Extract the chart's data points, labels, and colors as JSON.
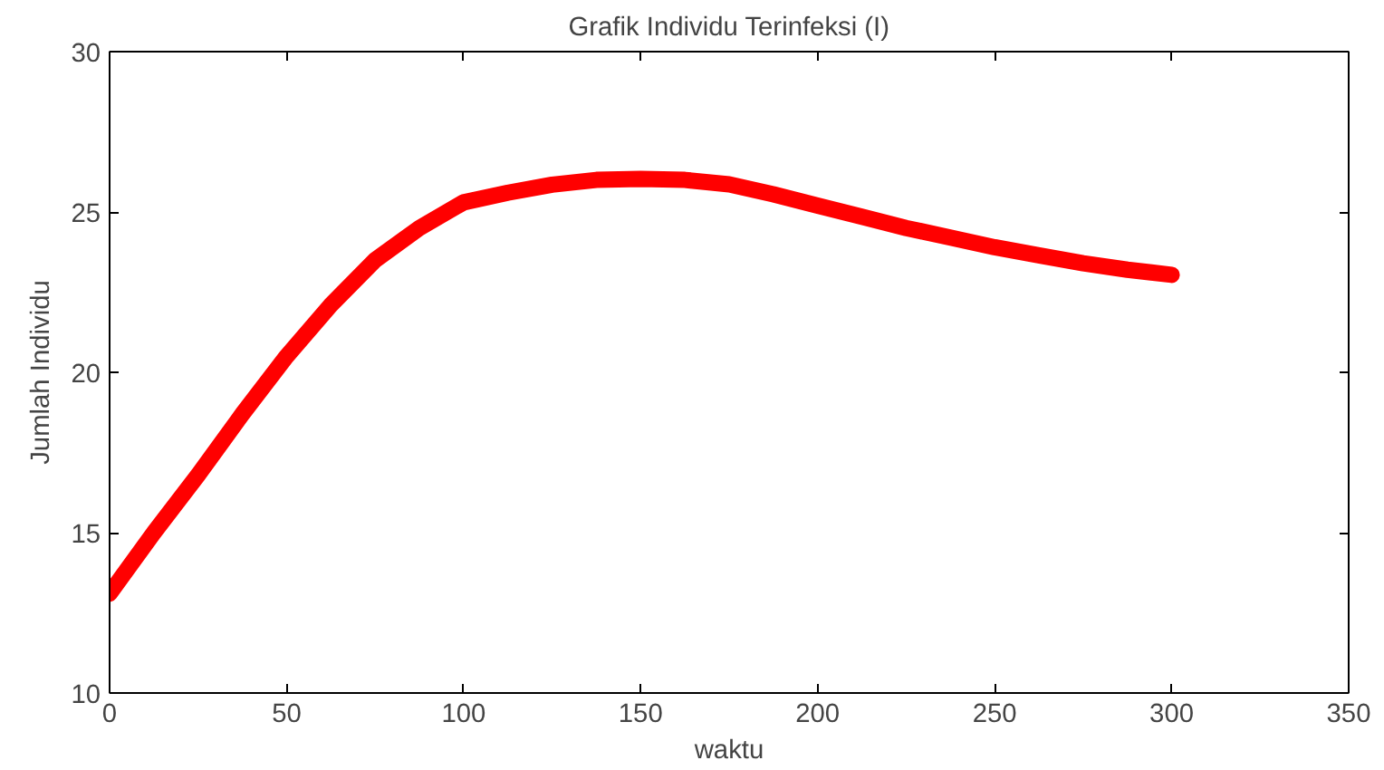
{
  "chart_data": {
    "type": "line",
    "title": "Grafik Individu Terinfeksi (I)",
    "xlabel": "waktu",
    "ylabel": "Jumlah Individu",
    "x": [
      0,
      12.5,
      25,
      37.5,
      50,
      62.5,
      75,
      87.5,
      100,
      112.5,
      125,
      137.5,
      150,
      162.5,
      175,
      187.5,
      200,
      212.5,
      225,
      237.5,
      250,
      262.5,
      275,
      287.5,
      300
    ],
    "series": [
      {
        "color": "#ff0000",
        "values": [
          13.1,
          15.0,
          16.8,
          18.7,
          20.5,
          22.1,
          23.5,
          24.5,
          25.3,
          25.6,
          25.85,
          26.0,
          26.03,
          26.0,
          25.86,
          25.55,
          25.2,
          24.85,
          24.5,
          24.2,
          23.9,
          23.65,
          23.4,
          23.2,
          23.04
        ]
      }
    ],
    "xlim": [
      0,
      350
    ],
    "xticks": [
      0,
      50,
      100,
      150,
      200,
      250,
      300,
      350
    ],
    "ylim": [
      10,
      30
    ],
    "yticks": [
      10,
      15,
      20,
      25,
      30
    ],
    "grid": false
  }
}
